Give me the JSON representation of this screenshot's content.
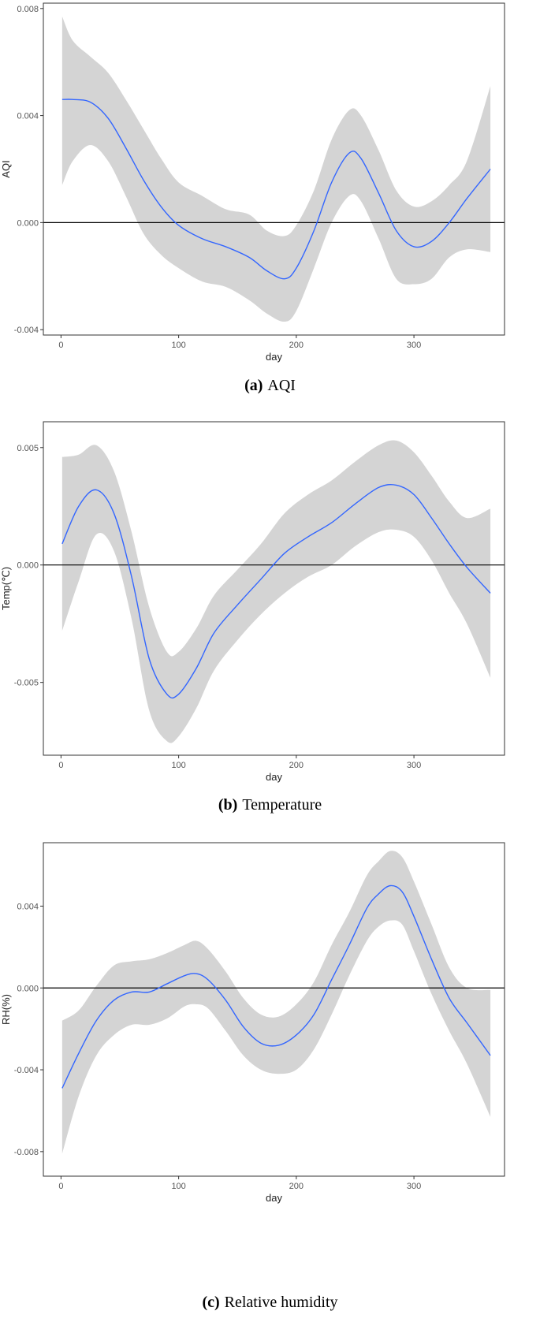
{
  "chart_data": [
    {
      "type": "line",
      "panel_label": "(a)",
      "caption": "AQI",
      "xlabel": "day",
      "ylabel": "AQI",
      "xlim": [
        -15,
        377
      ],
      "ylim": [
        -0.0042,
        0.0082
      ],
      "xticks": [
        0,
        100,
        200,
        300
      ],
      "yticks": [
        -0.004,
        0.0,
        0.004,
        0.008
      ],
      "ytick_labels": [
        "-0.004",
        "0.000",
        "0.004",
        "0.008"
      ],
      "hline": 0,
      "grid": false,
      "series": [
        {
          "x": [
            1,
            10,
            25,
            40,
            55,
            70,
            85,
            100,
            120,
            140,
            160,
            175,
            190,
            200,
            215,
            230,
            245,
            255,
            270,
            285,
            300,
            315,
            330,
            345,
            365
          ],
          "y": [
            0.0046,
            0.0046,
            0.0045,
            0.0039,
            0.0028,
            0.0016,
            0.0006,
            -0.0001,
            -0.0006,
            -0.0009,
            -0.0013,
            -0.0018,
            -0.0021,
            -0.0017,
            -0.0003,
            0.0015,
            0.0026,
            0.0024,
            0.0011,
            -0.0003,
            -0.0009,
            -0.0007,
            0.0,
            0.0009,
            0.002
          ],
          "lower": [
            0.0014,
            0.0023,
            0.0029,
            0.0023,
            0.001,
            -0.0004,
            -0.0012,
            -0.0017,
            -0.0022,
            -0.0024,
            -0.0029,
            -0.0034,
            -0.0037,
            -0.0033,
            -0.0017,
            0.0,
            0.001,
            0.0008,
            -0.0006,
            -0.0021,
            -0.0023,
            -0.0021,
            -0.0013,
            -0.001,
            -0.0011
          ],
          "upper": [
            0.0077,
            0.0068,
            0.0062,
            0.0056,
            0.0046,
            0.0035,
            0.0024,
            0.0015,
            0.001,
            0.0005,
            0.0003,
            -0.0003,
            -0.0005,
            -0.0001,
            0.0012,
            0.0031,
            0.0042,
            0.004,
            0.0027,
            0.0012,
            0.0006,
            0.0008,
            0.0014,
            0.0023,
            0.0051
          ]
        }
      ]
    },
    {
      "type": "line",
      "panel_label": "(b)",
      "caption": "Temperature",
      "xlabel": "day",
      "ylabel": "Temp(℃)",
      "xlim": [
        -15,
        377
      ],
      "ylim": [
        -0.0081,
        0.0061
      ],
      "xticks": [
        0,
        100,
        200,
        300
      ],
      "yticks": [
        -0.005,
        0.0,
        0.005
      ],
      "ytick_labels": [
        "-0.005",
        "0.000",
        "0.005"
      ],
      "hline": 0,
      "grid": false,
      "series": [
        {
          "x": [
            1,
            15,
            30,
            45,
            60,
            75,
            90,
            100,
            115,
            130,
            150,
            170,
            190,
            210,
            230,
            250,
            270,
            285,
            300,
            315,
            330,
            345,
            365
          ],
          "y": [
            0.0009,
            0.0025,
            0.0032,
            0.0022,
            -0.0005,
            -0.004,
            -0.0055,
            -0.0055,
            -0.0044,
            -0.0029,
            -0.0017,
            -0.0006,
            0.0005,
            0.0012,
            0.0018,
            0.0026,
            0.0033,
            0.0034,
            0.003,
            0.002,
            0.0009,
            -0.0001,
            -0.0012
          ],
          "lower": [
            -0.0028,
            -0.0007,
            0.0013,
            0.0006,
            -0.0023,
            -0.0062,
            -0.0075,
            -0.0073,
            -0.0061,
            -0.0045,
            -0.0032,
            -0.0021,
            -0.0012,
            -0.0005,
            0.0,
            0.0008,
            0.0014,
            0.0015,
            0.0012,
            0.0002,
            -0.0012,
            -0.0025,
            -0.0048
          ],
          "upper": [
            0.0046,
            0.0047,
            0.0051,
            0.004,
            0.0014,
            -0.0018,
            -0.0037,
            -0.0037,
            -0.0027,
            -0.0013,
            -0.0002,
            0.0009,
            0.0022,
            0.003,
            0.0036,
            0.0044,
            0.0051,
            0.0053,
            0.0048,
            0.0038,
            0.0027,
            0.002,
            0.0024
          ]
        }
      ]
    },
    {
      "type": "line",
      "panel_label": "(c)",
      "caption": "Relative humidity",
      "xlabel": "day",
      "ylabel": "RH(%)",
      "xlim": [
        -15,
        377
      ],
      "ylim": [
        -0.0092,
        0.0071
      ],
      "xticks": [
        0,
        100,
        200,
        300
      ],
      "yticks": [
        -0.008,
        -0.004,
        0.0,
        0.004
      ],
      "ytick_labels": [
        "-0.008",
        "-0.004",
        "0.000",
        "0.004"
      ],
      "hline": 0,
      "grid": false,
      "series": [
        {
          "x": [
            1,
            15,
            30,
            45,
            60,
            75,
            90,
            105,
            115,
            125,
            140,
            155,
            170,
            185,
            200,
            215,
            230,
            245,
            260,
            270,
            280,
            290,
            300,
            315,
            330,
            345,
            365
          ],
          "y": [
            -0.0049,
            -0.0032,
            -0.0016,
            -0.0006,
            -0.0002,
            -0.0002,
            0.0002,
            0.0006,
            0.0007,
            0.0004,
            -0.0006,
            -0.0019,
            -0.0027,
            -0.0028,
            -0.0023,
            -0.0013,
            0.0004,
            0.0021,
            0.0039,
            0.0046,
            0.005,
            0.0047,
            0.0035,
            0.0014,
            -0.0005,
            -0.0017,
            -0.0033
          ],
          "lower": [
            -0.0081,
            -0.0053,
            -0.0033,
            -0.0023,
            -0.0018,
            -0.0018,
            -0.0015,
            -0.0009,
            -0.0008,
            -0.001,
            -0.0021,
            -0.0033,
            -0.004,
            -0.0042,
            -0.004,
            -0.003,
            -0.0013,
            0.0006,
            0.0023,
            0.003,
            0.0033,
            0.0031,
            0.0018,
            -0.0003,
            -0.0021,
            -0.0037,
            -0.0063
          ],
          "upper": [
            -0.0016,
            -0.0011,
            0.0001,
            0.0011,
            0.0013,
            0.0014,
            0.0017,
            0.0021,
            0.0023,
            0.0019,
            0.0008,
            -0.0005,
            -0.0013,
            -0.0014,
            -0.0008,
            0.0003,
            0.0021,
            0.0037,
            0.0055,
            0.0062,
            0.0067,
            0.0064,
            0.0052,
            0.0031,
            0.001,
            0.0,
            -0.0001
          ]
        }
      ]
    }
  ],
  "colors": {
    "line": "#3366ff",
    "band": "#d4d4d4",
    "refline": "#000000",
    "frame": "#333333"
  }
}
